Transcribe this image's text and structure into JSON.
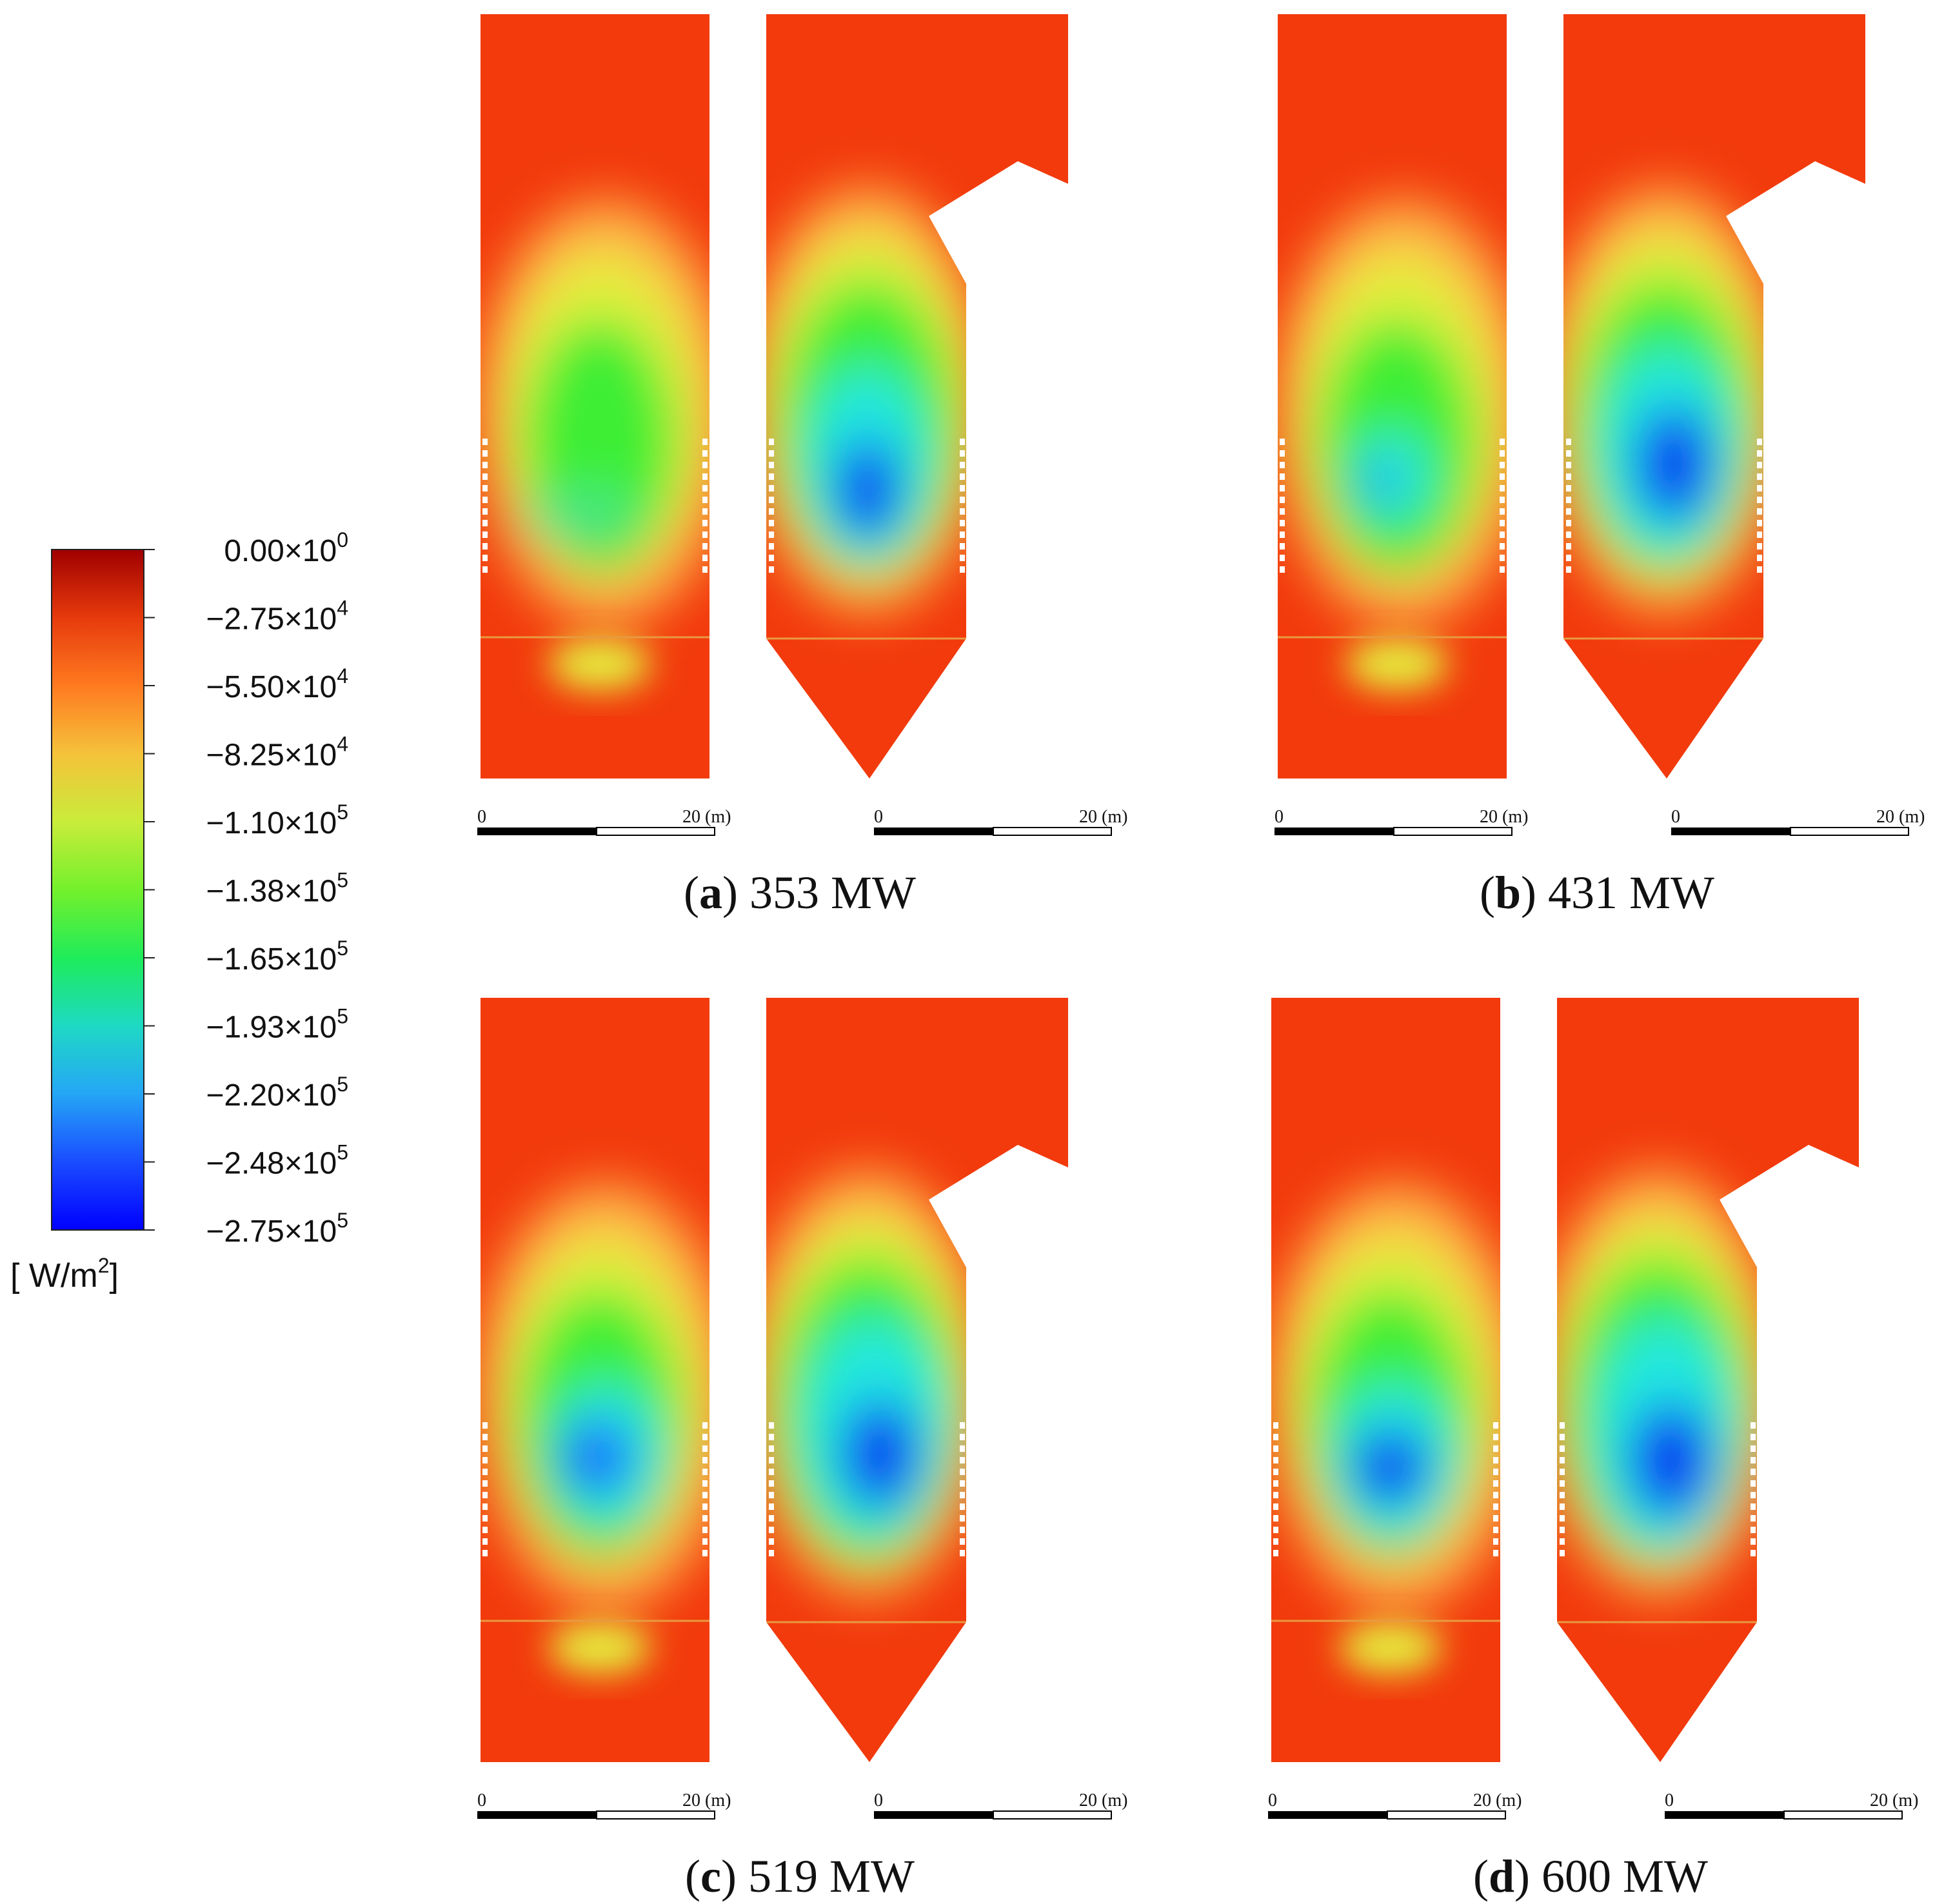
{
  "colorbar": {
    "ticks": [
      {
        "base": "0.00×10",
        "exp": "0"
      },
      {
        "base": "−2.75×10",
        "exp": "4"
      },
      {
        "base": "−5.50×10",
        "exp": "4"
      },
      {
        "base": "−8.25×10",
        "exp": "4"
      },
      {
        "base": "−1.10×10",
        "exp": "5"
      },
      {
        "base": "−1.38×10",
        "exp": "5"
      },
      {
        "base": "−1.65×10",
        "exp": "5"
      },
      {
        "base": "−1.93×10",
        "exp": "5"
      },
      {
        "base": "−2.20×10",
        "exp": "5"
      },
      {
        "base": "−2.48×10",
        "exp": "5"
      },
      {
        "base": "−2.75×10",
        "exp": "5"
      }
    ],
    "unit_prefix": "[ W/m",
    "unit_exp": "2",
    "unit_suffix": "]",
    "colors": [
      "#a00000",
      "#e63a0c",
      "#ff8a28",
      "#d8df4c",
      "#7ff02c",
      "#29ec3c",
      "#1ee3b4",
      "#22b8f2",
      "#1a5cff",
      "#0000ff"
    ]
  },
  "panels": [
    {
      "letter": "a",
      "label": "353 MW"
    },
    {
      "letter": "b",
      "label": "431 MW"
    },
    {
      "letter": "c",
      "label": "519 MW"
    },
    {
      "letter": "d",
      "label": "600 MW"
    }
  ],
  "scalebar": {
    "start": "0",
    "end": "20 (m)"
  },
  "palette": {
    "outer": "#f23a0c",
    "mid": "#ffb24a",
    "yellow": "#e6ee3c",
    "green": "#3dee36",
    "cyan": "#22e8e0",
    "blue": "#0a2cf2"
  }
}
